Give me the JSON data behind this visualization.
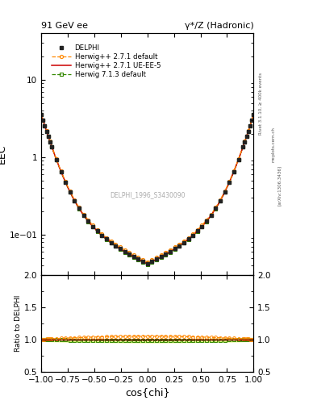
{
  "title_left": "91 GeV ee",
  "title_right": "γ*/Z (Hadronic)",
  "ylabel_main": "EEC",
  "ylabel_ratio": "Ratio to DELPHI",
  "xlabel": "cos{chi}",
  "watermark": "DELPHI_1996_S3430090",
  "right_label_top": "Rivet 3.1.10, ≥ 400k events",
  "right_label_bottom": "[arXiv:1306.3436]",
  "right_label_mid": "mcplots.cern.ch",
  "ylim_main": [
    0.03,
    40
  ],
  "ylim_ratio": [
    0.5,
    2.0
  ],
  "xlim": [
    -1.0,
    1.0
  ],
  "legend_entries": [
    "DELPHI",
    "Herwig++ 2.7.1 default",
    "Herwig++ 2.7.1 UE-EE-5",
    "Herwig 7.1.3 default"
  ],
  "data_color": "#222222",
  "herwig271_default_color": "#FF8800",
  "herwig271_ueee5_color": "#CC0000",
  "herwig713_color": "#338800",
  "herwig713_band_color": "#ccee44"
}
